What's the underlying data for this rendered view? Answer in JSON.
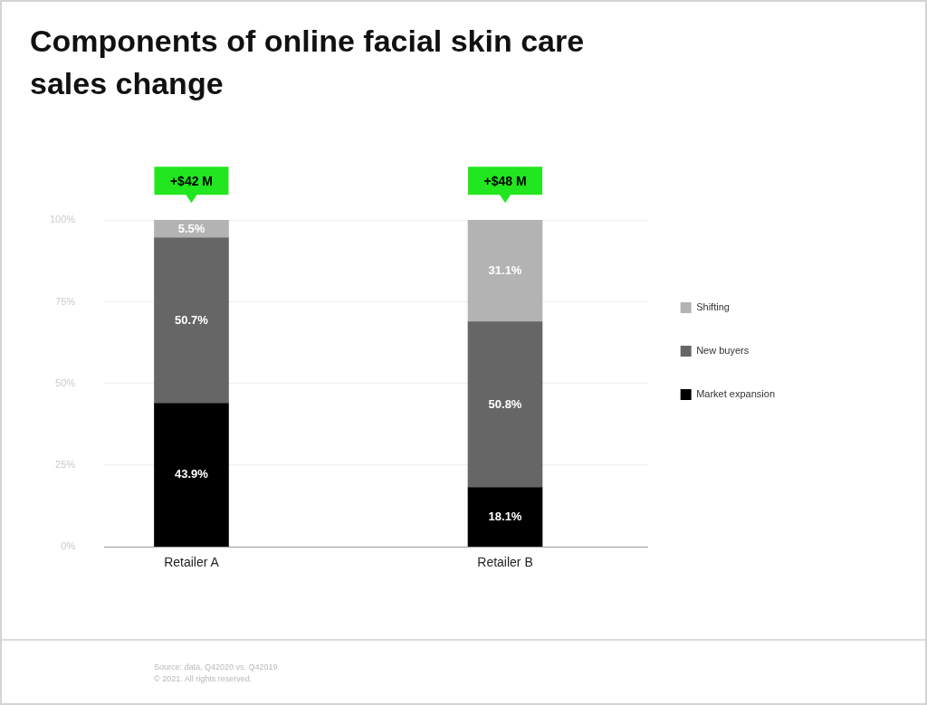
{
  "chart_data": {
    "type": "bar",
    "title": "Components of online facial skin care sales change",
    "categories": [
      "Retailer A",
      "Retailer B"
    ],
    "stacked": true,
    "series": [
      {
        "name": "Market expansion",
        "color": "#000000",
        "values": [
          43.9,
          18.1
        ],
        "value_labels": [
          "43.9%",
          "18.1%"
        ]
      },
      {
        "name": "New buyers",
        "color": "#666666",
        "values": [
          50.7,
          50.8
        ],
        "value_labels": [
          "50.7%",
          "50.8%"
        ]
      },
      {
        "name": "Shifting",
        "color": "#b3b3b3",
        "values": [
          5.5,
          31.1
        ],
        "value_labels": [
          "5.5%",
          "31.1%"
        ]
      }
    ],
    "ylim": [
      0,
      100.1
    ],
    "yticks": [
      {
        "value": 0,
        "label": "0%"
      },
      {
        "value": 25,
        "label": "25%"
      },
      {
        "value": 50,
        "label": "50%"
      },
      {
        "value": 75,
        "label": "75%"
      },
      {
        "value": 100,
        "label": "100%"
      }
    ],
    "grid": "y",
    "legend": "right",
    "annotations": [
      {
        "text": "+$42 M",
        "x": "Retailer A",
        "y": 100
      },
      {
        "text": "+$48 M",
        "x": "Retailer B",
        "y": 100
      },
      "Source: data, Q42020 vs. Q42019",
      "© 2021. All rights reserved."
    ]
  }
}
